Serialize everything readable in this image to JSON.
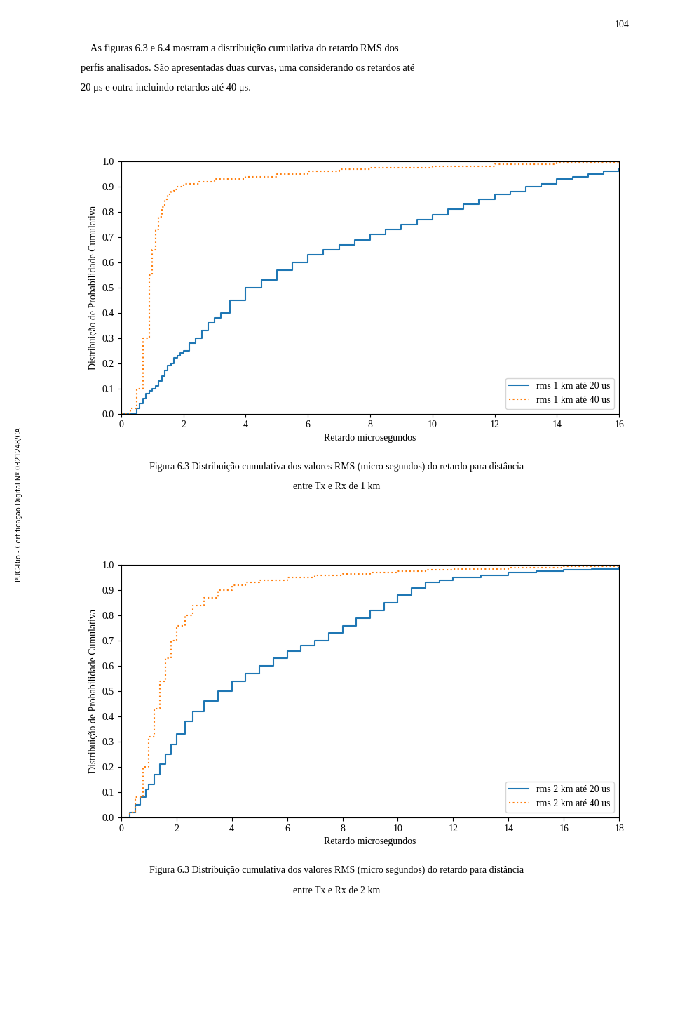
{
  "page_number": "104",
  "sidebar_text": "PUC-Rio - Certificação Digital Nº 0321248/CA",
  "paragraph": [
    "    As figuras 6.3 e 6.4 mostram a distribuição cumulativa do retardo RMS dos",
    "perfis analisados. São apresentadas duas curvas, uma considerando os retardos até",
    "20 μs e outra incluindo retardos até 40 μs."
  ],
  "chart_data": [
    {
      "type": "step",
      "caption": [
        "Figura 6.3 Distribuição cumulativa dos valores RMS (micro segundos) do retardo para distância",
        "entre Tx e Rx de 1 km"
      ],
      "x_label": "Retardo microsegundos",
      "y_label": "Distribuição de Probabilidade Cumulativa",
      "xlim": [
        0,
        16
      ],
      "ylim": [
        0,
        1
      ],
      "xticks": [
        0,
        2,
        4,
        6,
        8,
        10,
        12,
        14,
        16
      ],
      "yticks": [
        {
          "value": 0,
          "label": "0.0"
        },
        0.1,
        0.2,
        0.3,
        0.4,
        0.5,
        0.6,
        0.7,
        0.8,
        0.9,
        {
          "value": 1,
          "label": "1.0"
        }
      ],
      "legend": "lower right",
      "series": [
        {
          "name": "rms 1 km até 20 us",
          "line_style": "solid",
          "x": [
            0,
            0.5,
            0.6,
            0.7,
            0.8,
            0.9,
            1.0,
            1.1,
            1.2,
            1.3,
            1.4,
            1.5,
            1.6,
            1.7,
            1.8,
            1.9,
            2.0,
            2.2,
            2.4,
            2.6,
            2.8,
            3.0,
            3.2,
            3.5,
            4.0,
            4.5,
            5.0,
            5.5,
            6.0,
            6.5,
            7.0,
            7.5,
            8.0,
            8.5,
            9.0,
            9.5,
            10.0,
            10.5,
            11.0,
            11.5,
            12.0,
            12.5,
            13.0,
            13.5,
            14.0,
            14.5,
            15.0,
            15.5,
            16.0
          ],
          "values": [
            0,
            0.02,
            0.04,
            0.06,
            0.08,
            0.09,
            0.1,
            0.11,
            0.13,
            0.15,
            0.17,
            0.19,
            0.2,
            0.22,
            0.23,
            0.24,
            0.25,
            0.28,
            0.3,
            0.33,
            0.36,
            0.38,
            0.4,
            0.45,
            0.5,
            0.53,
            0.57,
            0.6,
            0.63,
            0.65,
            0.67,
            0.69,
            0.71,
            0.73,
            0.75,
            0.77,
            0.79,
            0.81,
            0.83,
            0.85,
            0.87,
            0.88,
            0.9,
            0.91,
            0.93,
            0.94,
            0.95,
            0.96,
            0.97
          ]
        },
        {
          "name": "rms 1 km até 40 us",
          "line_style": "dotted",
          "x": [
            0,
            0.3,
            0.5,
            0.7,
            0.9,
            1.0,
            1.1,
            1.2,
            1.3,
            1.4,
            1.5,
            1.6,
            1.7,
            1.8,
            2.0,
            2.5,
            3.0,
            4.0,
            5.0,
            6.0,
            7.0,
            8.0,
            10.0,
            12.0,
            14.0,
            16.0
          ],
          "values": [
            0,
            0.02,
            0.1,
            0.3,
            0.55,
            0.65,
            0.73,
            0.78,
            0.82,
            0.85,
            0.87,
            0.88,
            0.89,
            0.9,
            0.91,
            0.92,
            0.93,
            0.94,
            0.95,
            0.96,
            0.97,
            0.975,
            0.98,
            0.99,
            0.995,
            1.0
          ]
        }
      ]
    },
    {
      "type": "step",
      "caption": [
        "Figura 6.3 Distribuição cumulativa dos valores RMS (micro segundos) do retardo para distância",
        "entre Tx e Rx de 2 km"
      ],
      "x_label": "Retardo microsegundos",
      "y_label": "Distribuição de Probabilidade Cumulativa",
      "xlim": [
        0,
        18
      ],
      "ylim": [
        0,
        1
      ],
      "xticks": [
        0,
        2,
        4,
        6,
        8,
        10,
        12,
        14,
        16,
        18
      ],
      "yticks": [
        {
          "value": 0,
          "label": "0.0"
        },
        0.1,
        0.2,
        0.3,
        0.4,
        0.5,
        0.6,
        0.7,
        0.8,
        0.9,
        {
          "value": 1,
          "label": "1.0"
        }
      ],
      "legend": "lower right",
      "series": [
        {
          "name": "rms 2 km até 20 us",
          "line_style": "solid",
          "x": [
            0,
            0.3,
            0.5,
            0.7,
            0.9,
            1.0,
            1.2,
            1.4,
            1.6,
            1.8,
            2.0,
            2.3,
            2.6,
            3.0,
            3.5,
            4.0,
            4.5,
            5.0,
            5.5,
            6.0,
            6.5,
            7.0,
            7.5,
            8.0,
            8.5,
            9.0,
            9.5,
            10.0,
            10.5,
            11.0,
            11.5,
            12.0,
            13.0,
            14.0,
            15.0,
            16.0,
            17.0,
            18.0
          ],
          "values": [
            0,
            0.02,
            0.05,
            0.08,
            0.11,
            0.13,
            0.17,
            0.21,
            0.25,
            0.29,
            0.33,
            0.38,
            0.42,
            0.46,
            0.5,
            0.54,
            0.57,
            0.6,
            0.63,
            0.66,
            0.68,
            0.7,
            0.73,
            0.76,
            0.79,
            0.82,
            0.85,
            0.88,
            0.91,
            0.93,
            0.94,
            0.95,
            0.96,
            0.97,
            0.975,
            0.98,
            0.985,
            0.99
          ]
        },
        {
          "name": "rms 2 km até 40 us",
          "line_style": "dotted",
          "x": [
            0,
            0.3,
            0.5,
            0.8,
            1.0,
            1.2,
            1.4,
            1.6,
            1.8,
            2.0,
            2.3,
            2.6,
            3.0,
            3.5,
            4.0,
            4.5,
            5.0,
            6.0,
            7.0,
            8.0,
            9.0,
            10.0,
            11.0,
            12.0,
            14.0,
            16.0,
            18.0
          ],
          "values": [
            0,
            0.02,
            0.08,
            0.2,
            0.32,
            0.43,
            0.54,
            0.63,
            0.7,
            0.76,
            0.8,
            0.84,
            0.87,
            0.9,
            0.92,
            0.93,
            0.94,
            0.95,
            0.96,
            0.965,
            0.97,
            0.975,
            0.98,
            0.985,
            0.99,
            0.995,
            1.0
          ]
        }
      ]
    }
  ]
}
